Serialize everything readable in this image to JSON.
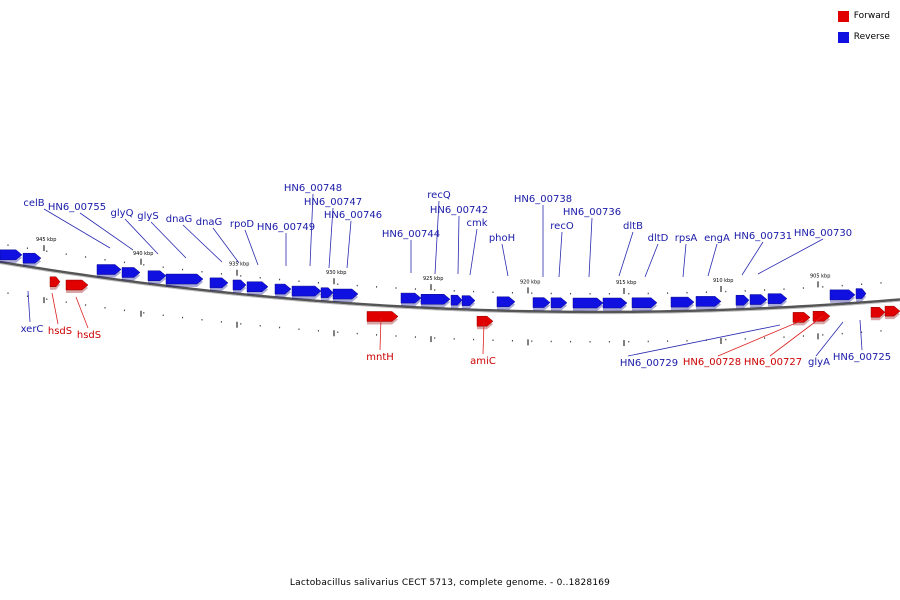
{
  "colors": {
    "forward": "#e00000",
    "reverse": "#1010e0",
    "backbone": "#888888",
    "label_forward": "#cc0000",
    "label_reverse": "#1a1aa8"
  },
  "legend": {
    "items": [
      {
        "label": "Forward",
        "color": "#e00000"
      },
      {
        "label": "Reverse",
        "color": "#1010e0"
      }
    ]
  },
  "caption": "Lactobacillus salivarius CECT 5713, complete genome. - 0..1828169",
  "ticks": [
    "945 kbp",
    "940 kbp",
    "935 kbp",
    "930 kbp",
    "925 kbp",
    "920 kbp",
    "915 kbp",
    "910 kbp",
    "905 kbp"
  ],
  "genes_reverse": [
    "celB",
    "HN6_00755",
    "glyQ",
    "glyS",
    "dnaG",
    "dnaG",
    "rpoD",
    "HN6_00749",
    "HN6_00748",
    "HN6_00747",
    "HN6_00746",
    "HN6_00744",
    "recQ",
    "HN6_00742",
    "cmk",
    "phoH",
    "HN6_00738",
    "recO",
    "HN6_00736",
    "dltB",
    "dltD",
    "rpsA",
    "engA",
    "HN6_00731",
    "HN6_00730",
    "xerC",
    "HN6_00729",
    "glyA",
    "HN6_00725"
  ],
  "genes_forward": [
    "hsdS",
    "hsdS",
    "mntH",
    "amiC",
    "HN6_00728",
    "HN6_00727"
  ]
}
